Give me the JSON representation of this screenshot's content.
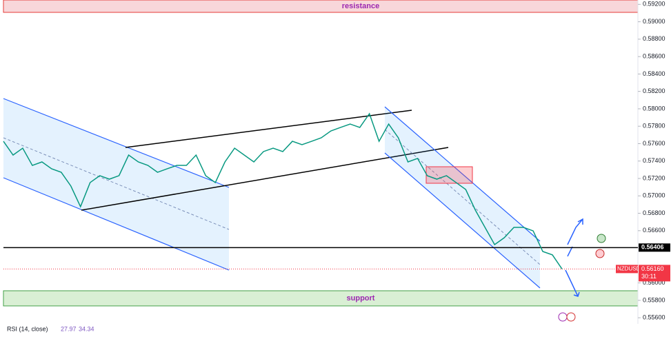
{
  "chart_data": {
    "type": "line",
    "series": [
      {
        "name": "NZDUSD",
        "color": "#089981",
        "values": [
          0.57627,
          0.57469,
          0.57548,
          0.5735,
          0.5739,
          0.57311,
          0.57271,
          0.57113,
          0.56876,
          0.57153,
          0.57232,
          0.57192,
          0.57232,
          0.57469,
          0.5739,
          0.5735,
          0.57271,
          0.57311,
          0.5735,
          0.5735,
          0.57469,
          0.57232,
          0.57153,
          0.5739,
          0.57548,
          0.57469,
          0.5739,
          0.57509,
          0.57548,
          0.57509,
          0.57627,
          0.57588,
          0.57627,
          0.57667,
          0.57746,
          0.57786,
          0.57825,
          0.57786,
          0.57944,
          0.57627,
          0.57825,
          0.57667,
          0.5739,
          0.5743,
          0.57232,
          0.57192,
          0.57232,
          0.57153,
          0.57073,
          0.56836,
          0.56638,
          0.5644,
          0.56519,
          0.56638,
          0.56638,
          0.56598,
          0.56361,
          0.56322,
          0.5616
        ]
      }
    ],
    "ylim": [
      0.5553,
      0.5925
    ],
    "yticks": [
      {
        "value": 0.592,
        "label": "0.59200"
      },
      {
        "value": 0.59,
        "label": "0.59000"
      },
      {
        "value": 0.588,
        "label": "0.58800"
      },
      {
        "value": 0.586,
        "label": "0.58600"
      },
      {
        "value": 0.584,
        "label": "0.58400"
      },
      {
        "value": 0.582,
        "label": "0.58200"
      },
      {
        "value": 0.58,
        "label": "0.58000"
      },
      {
        "value": 0.578,
        "label": "0.57800"
      },
      {
        "value": 0.576,
        "label": "0.57600"
      },
      {
        "value": 0.574,
        "label": "0.57400"
      },
      {
        "value": 0.572,
        "label": "0.57200"
      },
      {
        "value": 0.57,
        "label": "0.57000"
      },
      {
        "value": 0.568,
        "label": "0.56800"
      },
      {
        "value": 0.566,
        "label": "0.56600"
      },
      {
        "value": 0.56,
        "label": "0.56000"
      },
      {
        "value": 0.558,
        "label": "0.55800"
      },
      {
        "value": 0.556,
        "label": "0.55600"
      }
    ],
    "zones": [
      {
        "label": "resistance",
        "from": 0.59108,
        "to": 0.5925,
        "color": "#f8d7da"
      },
      {
        "label": "support",
        "from": 0.55736,
        "to": 0.5591,
        "color": "#d9efd4"
      }
    ],
    "hline": {
      "value": 0.56406,
      "label": "0.56406"
    },
    "last_price": {
      "value": 0.5616,
      "label": "0.56160",
      "symbol": "NZDUSD",
      "timer": "30:11"
    },
    "indicator": {
      "name": "RSI (14, close)",
      "v1": "27.97",
      "v2": "34.34"
    }
  }
}
